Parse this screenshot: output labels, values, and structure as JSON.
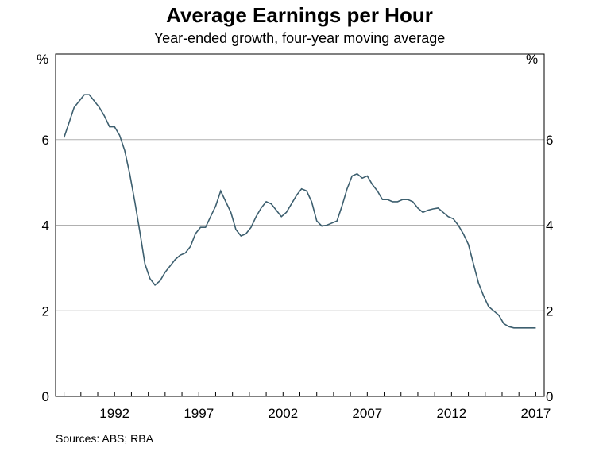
{
  "chart_data": {
    "type": "line",
    "title": "Average Earnings per Hour",
    "subtitle": "Year-ended growth, four-year moving average",
    "ylabel_left": "%",
    "ylabel_right": "%",
    "ylim": [
      0,
      8
    ],
    "yticks": [
      0,
      2,
      4,
      6
    ],
    "xlim": [
      1988.5,
      2017.5
    ],
    "xtick_labels": [
      "1992",
      "1997",
      "2002",
      "2007",
      "2012",
      "2017"
    ],
    "xtick_label_positions": [
      1992,
      1997,
      2002,
      2007,
      2012,
      2017
    ],
    "grid": true,
    "line_color": "#3d5f6f",
    "grid_color": "#b0b0b0",
    "source": "Sources:   ABS; RBA",
    "series": [
      {
        "x": [
          1989.0,
          1989.3,
          1989.6,
          1989.9,
          1990.2,
          1990.5,
          1990.8,
          1991.1,
          1991.4,
          1991.7,
          1992.0,
          1992.3,
          1992.6,
          1992.9,
          1993.2,
          1993.5,
          1993.8,
          1994.1,
          1994.4,
          1994.7,
          1995.0,
          1995.3,
          1995.6,
          1995.9,
          1996.2,
          1996.5,
          1996.8,
          1997.1,
          1997.4,
          1997.7,
          1998.0,
          1998.3,
          1998.6,
          1998.9,
          1999.2,
          1999.5,
          1999.8,
          2000.1,
          2000.4,
          2000.7,
          2001.0,
          2001.3,
          2001.6,
          2001.9,
          2002.2,
          2002.5,
          2002.8,
          2003.1,
          2003.4,
          2003.7,
          2004.0,
          2004.3,
          2004.6,
          2004.9,
          2005.2,
          2005.5,
          2005.8,
          2006.1,
          2006.4,
          2006.7,
          2007.0,
          2007.3,
          2007.6,
          2007.9,
          2008.2,
          2008.5,
          2008.8,
          2009.1,
          2009.4,
          2009.7,
          2010.0,
          2010.3,
          2010.6,
          2010.9,
          2011.2,
          2011.5,
          2011.8,
          2012.1,
          2012.4,
          2012.7,
          2013.0,
          2013.3,
          2013.6,
          2013.9,
          2014.2,
          2014.5,
          2014.8,
          2015.1,
          2015.4,
          2015.7,
          2016.0,
          2016.3,
          2016.6,
          2016.9,
          2017.0
        ],
        "values": [
          6.05,
          6.4,
          6.75,
          6.9,
          7.05,
          7.05,
          6.9,
          6.75,
          6.55,
          6.3,
          6.3,
          6.1,
          5.75,
          5.2,
          4.55,
          3.85,
          3.1,
          2.75,
          2.6,
          2.7,
          2.9,
          3.05,
          3.2,
          3.3,
          3.35,
          3.5,
          3.8,
          3.95,
          3.95,
          4.2,
          4.45,
          4.8,
          4.55,
          4.3,
          3.9,
          3.75,
          3.8,
          3.95,
          4.2,
          4.4,
          4.55,
          4.5,
          4.35,
          4.2,
          4.3,
          4.5,
          4.7,
          4.85,
          4.8,
          4.55,
          4.1,
          3.98,
          4.0,
          4.05,
          4.1,
          4.45,
          4.85,
          5.15,
          5.2,
          5.1,
          5.15,
          4.95,
          4.8,
          4.6,
          4.6,
          4.55,
          4.55,
          4.6,
          4.6,
          4.55,
          4.4,
          4.3,
          4.35,
          4.38,
          4.4,
          4.3,
          4.2,
          4.15,
          4.0,
          3.8,
          3.55,
          3.1,
          2.65,
          2.35,
          2.1,
          2.0,
          1.9,
          1.7,
          1.63,
          1.6,
          1.6,
          1.6,
          1.6,
          1.6,
          1.6
        ]
      }
    ]
  }
}
